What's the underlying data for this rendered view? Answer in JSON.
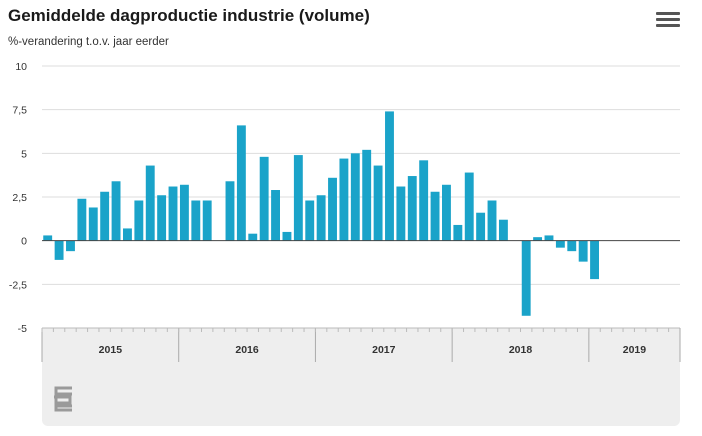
{
  "header": {
    "title": "Gemiddelde dagproductie industrie (volume)",
    "subtitle": "%-verandering t.o.v. jaar eerder",
    "menu_icon": "hamburger-menu-icon"
  },
  "footer": {
    "logo_icon": "cbs-logo-icon"
  },
  "colors": {
    "bar": "#1aa3c9",
    "grid": "#dddddd",
    "zero_line": "#444444",
    "axis_band": "#eeeeee"
  },
  "chart_data": {
    "type": "bar",
    "title": "Gemiddelde dagproductie industrie (volume)",
    "subtitle": "%-verandering t.o.v. jaar eerder",
    "xlabel": "",
    "ylabel": "",
    "ylim": [
      -5,
      10
    ],
    "yticks": [
      10,
      7.5,
      5,
      2.5,
      0,
      -2.5,
      -5
    ],
    "ytick_labels": [
      "10",
      "7,5",
      "5",
      "2,5",
      "0",
      "-2,5",
      "-5"
    ],
    "grid": true,
    "legend": "none",
    "categories": [
      "2015-01",
      "2015-02",
      "2015-03",
      "2015-04",
      "2015-05",
      "2015-06",
      "2015-07",
      "2015-08",
      "2015-09",
      "2015-10",
      "2015-11",
      "2015-12",
      "2016-01",
      "2016-02",
      "2016-03",
      "2016-04",
      "2016-05",
      "2016-06",
      "2016-07",
      "2016-08",
      "2016-09",
      "2016-10",
      "2016-11",
      "2016-12",
      "2017-01",
      "2017-02",
      "2017-03",
      "2017-04",
      "2017-05",
      "2017-06",
      "2017-07",
      "2017-08",
      "2017-09",
      "2017-10",
      "2017-11",
      "2017-12",
      "2018-01",
      "2018-02",
      "2018-03",
      "2018-04",
      "2018-05",
      "2018-06",
      "2018-07",
      "2018-08",
      "2018-09",
      "2018-10",
      "2018-11",
      "2018-12",
      "2019-01",
      "2019-02",
      "2019-03",
      "2019-04",
      "2019-05",
      "2019-06",
      "2019-07",
      "2019-08"
    ],
    "values": [
      0.3,
      -1.1,
      -0.6,
      2.4,
      1.9,
      2.8,
      3.4,
      0.7,
      2.3,
      4.3,
      2.6,
      3.1,
      3.2,
      2.3,
      2.3,
      null,
      3.4,
      6.6,
      0.4,
      4.8,
      2.9,
      0.5,
      4.9,
      2.3,
      2.6,
      3.6,
      4.7,
      5.0,
      5.2,
      4.3,
      7.4,
      3.1,
      3.7,
      4.6,
      2.8,
      3.2,
      0.9,
      3.9,
      1.6,
      2.3,
      1.2,
      null,
      -4.3,
      0.2,
      0.3,
      -0.4,
      -0.6,
      -1.2,
      -2.2,
      null,
      null,
      null,
      null,
      null,
      null,
      null
    ],
    "year_labels": [
      "2015",
      "2016",
      "2017",
      "2018",
      "2019"
    ]
  }
}
